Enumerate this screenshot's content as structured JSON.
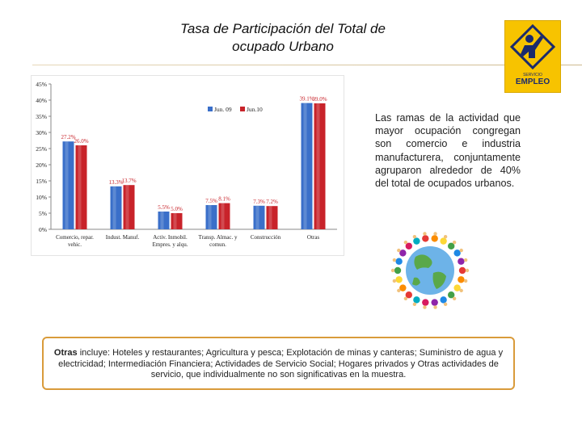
{
  "page": {
    "title_line1": "Tasa de Participación del Total de",
    "title_line2": "ocupado Urbano"
  },
  "logo": {
    "small_text": "SERVICIO",
    "label": "EMPLEO",
    "bg_color": "#f7c300"
  },
  "description": "Las ramas de la actividad que mayor ocupación congregan son comercio e industria manufacturera, conjuntamente agruparon alrededor de 40% del total de ocupados urbanos.",
  "note": {
    "bold": "Otras",
    "text": " incluye: Hoteles y restaurantes; Agricultura y pesca; Explotación de minas y canteras; Suministro de agua y electricidad; Intermediación Financiera; Actividades de Servicio Social; Hogares privados y Otras actividades de servicio, que individualmente no son significativas en la muestra."
  },
  "chart_data": {
    "type": "bar",
    "categories": [
      [
        "Comercio, repar.",
        "vehic."
      ],
      [
        "Indust. Manuf."
      ],
      [
        "Activ. Inmobil.",
        "Empres. y alqu."
      ],
      [
        "Transp. Almac. y",
        "comun."
      ],
      [
        "Construcción"
      ],
      [
        "Otras"
      ]
    ],
    "series": [
      {
        "name": "Jun. 09",
        "color": "#3a6fc9",
        "values": [
          27.2,
          13.3,
          5.5,
          7.5,
          7.3,
          39.1
        ],
        "labels": [
          "27.2%",
          "13.3%",
          "5.5%",
          "7.5%",
          "7.3%",
          "39.1%"
        ]
      },
      {
        "name": "Jun.10",
        "color": "#c8232a",
        "values": [
          26.0,
          13.7,
          5.0,
          8.1,
          7.2,
          39.0
        ],
        "labels": [
          "26.0%",
          "13.7%",
          "5.0%",
          "8.1%",
          "7.2%",
          "39.0%"
        ]
      }
    ],
    "ylim": [
      0,
      45
    ],
    "yticks": [
      "0%",
      "5%",
      "10%",
      "15%",
      "20%",
      "25%",
      "30%",
      "35%",
      "40%",
      "45%"
    ],
    "ytick_values": [
      0,
      5,
      10,
      15,
      20,
      25,
      30,
      35,
      40,
      45
    ],
    "legend_position": "top-right",
    "grid": false,
    "label_color": "#c8232a"
  }
}
